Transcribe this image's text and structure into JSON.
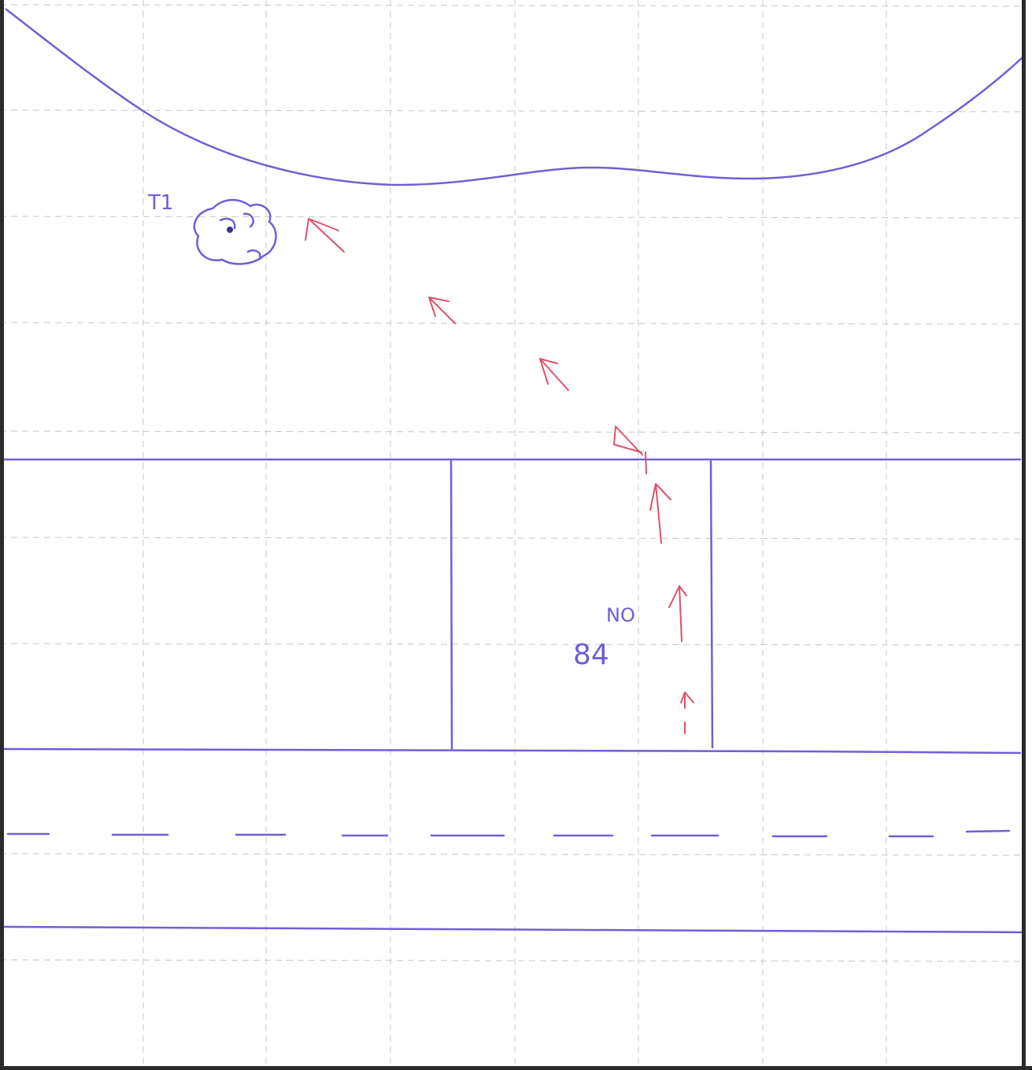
{
  "labels": {
    "tree": "T1",
    "marking": "NO",
    "number": "84"
  }
}
